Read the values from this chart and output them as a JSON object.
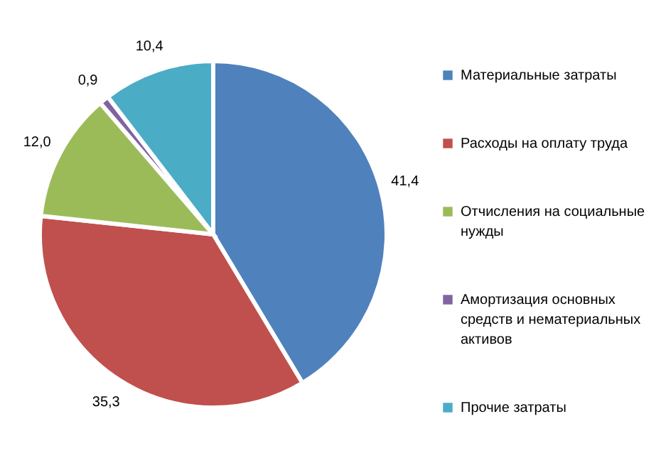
{
  "chart_data": {
    "type": "pie",
    "categories": [
      "Материальные затраты",
      "Расходы на оплату труда",
      "Отчисления  на социальные нужды",
      "Амортизация основных средств и нематериальных активов",
      "Прочие затраты"
    ],
    "values": [
      41.4,
      35.3,
      12.0,
      0.9,
      10.4
    ],
    "colors": [
      "#4f81bd",
      "#c0504d",
      "#9bbb59",
      "#8064a2",
      "#4bacc6"
    ],
    "value_labels": [
      "41,4",
      "35,3",
      "12,0",
      "0,9",
      "10,4"
    ],
    "legend": "right"
  }
}
